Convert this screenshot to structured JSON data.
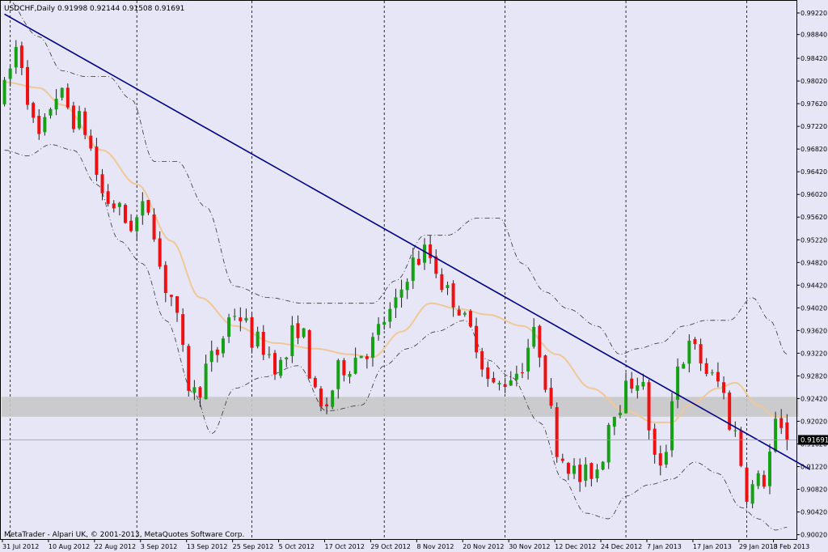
{
  "window": {
    "header": "USDCHF,Daily  0.91998 0.92144 0.91508 0.91691",
    "copyright": "MetaTrader - Alpari UK, © 2001-2013, MetaQuotes Software Corp.",
    "current_price_label": "0.91691"
  },
  "colors": {
    "background": "#e6e6f7",
    "bull": "#16a016",
    "bear": "#ee1111",
    "wick": "#222222",
    "trendline": "#000088",
    "ma": "#f0c896",
    "band": "#333333",
    "zone": "#c8c8c8",
    "grid": "#000000"
  },
  "chart_data": {
    "type": "candlestick",
    "symbol": "USDCHF",
    "timeframe": "Daily",
    "header_ohlc": {
      "open": 0.91998,
      "high": 0.92144,
      "low": 0.91508,
      "close": 0.91691
    },
    "price_axis": {
      "range": [
        0.9,
        0.9922
      ],
      "ticks": [
        "0.99220",
        "0.98840",
        "0.98420",
        "0.98020",
        "0.97620",
        "0.97220",
        "0.96820",
        "0.96420",
        "0.96020",
        "0.95620",
        "0.95220",
        "0.94820",
        "0.94420",
        "0.94020",
        "0.93620",
        "0.93220",
        "0.92820",
        "0.92420",
        "0.92020",
        "0.91620",
        "0.91220",
        "0.90820",
        "0.90420",
        "0.90020"
      ]
    },
    "time_axis": {
      "bars": 138,
      "labels": [
        {
          "bar": 0,
          "text": "31 Jul 2012"
        },
        {
          "bar": 8,
          "text": "10 Aug 2012"
        },
        {
          "bar": 16,
          "text": "22 Aug 2012"
        },
        {
          "bar": 24,
          "text": "3 Sep 2012"
        },
        {
          "bar": 32,
          "text": "13 Sep 2012"
        },
        {
          "bar": 40,
          "text": "25 Sep 2012"
        },
        {
          "bar": 48,
          "text": "5 Oct 2012"
        },
        {
          "bar": 56,
          "text": "17 Oct 2012"
        },
        {
          "bar": 64,
          "text": "29 Oct 2012"
        },
        {
          "bar": 72,
          "text": "8 Nov 2012"
        },
        {
          "bar": 80,
          "text": "20 Nov 2012"
        },
        {
          "bar": 88,
          "text": "30 Nov 2012"
        },
        {
          "bar": 96,
          "text": "12 Dec 2012"
        },
        {
          "bar": 104,
          "text": "24 Dec 2012"
        },
        {
          "bar": 112,
          "text": "7 Jan 2013"
        },
        {
          "bar": 120,
          "text": "17 Jan 2013"
        },
        {
          "bar": 128,
          "text": "29 Jan 2013"
        },
        {
          "bar": 134,
          "text": "8 Feb 2013"
        }
      ],
      "period_separators": [
        1,
        23,
        43,
        66,
        87,
        108,
        129
      ]
    },
    "close_path_keypoints": [
      [
        0,
        0.9785
      ],
      [
        2,
        0.986
      ],
      [
        6,
        0.97
      ],
      [
        9,
        0.978
      ],
      [
        13,
        0.973
      ],
      [
        18,
        0.959
      ],
      [
        22,
        0.955
      ],
      [
        25,
        0.958
      ],
      [
        28,
        0.944
      ],
      [
        33,
        0.925
      ],
      [
        36,
        0.931
      ],
      [
        40,
        0.9395
      ],
      [
        44,
        0.934
      ],
      [
        48,
        0.93
      ],
      [
        51,
        0.937
      ],
      [
        55,
        0.922
      ],
      [
        59,
        0.93
      ],
      [
        63,
        0.933
      ],
      [
        67,
        0.939
      ],
      [
        71,
        0.948
      ],
      [
        73,
        0.95
      ],
      [
        78,
        0.942
      ],
      [
        81,
        0.936
      ],
      [
        85,
        0.926
      ],
      [
        89,
        0.929
      ],
      [
        92,
        0.935
      ],
      [
        97,
        0.914
      ],
      [
        100,
        0.91
      ],
      [
        103,
        0.912
      ],
      [
        106,
        0.923
      ],
      [
        110,
        0.928
      ],
      [
        114,
        0.911
      ],
      [
        117,
        0.93
      ],
      [
        119,
        0.933
      ],
      [
        124,
        0.927
      ],
      [
        127,
        0.918
      ],
      [
        129,
        0.908
      ],
      [
        132,
        0.91
      ],
      [
        134,
        0.919
      ],
      [
        136,
        0.9169
      ]
    ],
    "moving_average_keypoints": [
      [
        0,
        0.98
      ],
      [
        6,
        0.979
      ],
      [
        10,
        0.976
      ],
      [
        17,
        0.968
      ],
      [
        23,
        0.962
      ],
      [
        29,
        0.952
      ],
      [
        34,
        0.942
      ],
      [
        40,
        0.937
      ],
      [
        47,
        0.934
      ],
      [
        54,
        0.933
      ],
      [
        60,
        0.932
      ],
      [
        64,
        0.9315
      ],
      [
        69,
        0.936
      ],
      [
        74,
        0.941
      ],
      [
        79,
        0.94
      ],
      [
        84,
        0.939
      ],
      [
        90,
        0.937
      ],
      [
        96,
        0.932
      ],
      [
        102,
        0.926
      ],
      [
        108,
        0.922
      ],
      [
        113,
        0.92
      ],
      [
        116,
        0.92
      ],
      [
        119,
        0.923
      ],
      [
        124,
        0.926
      ],
      [
        127,
        0.927
      ],
      [
        131,
        0.923
      ],
      [
        134,
        0.921
      ],
      [
        136,
        0.921
      ]
    ],
    "envelope_upper_keypoints": [
      [
        0,
        0.995
      ],
      [
        6,
        0.988
      ],
      [
        10,
        0.982
      ],
      [
        14,
        0.981
      ],
      [
        18,
        0.981
      ],
      [
        22,
        0.977
      ],
      [
        26,
        0.966
      ],
      [
        30,
        0.966
      ],
      [
        35,
        0.958
      ],
      [
        40,
        0.944
      ],
      [
        46,
        0.942
      ],
      [
        52,
        0.941
      ],
      [
        58,
        0.941
      ],
      [
        64,
        0.941
      ],
      [
        68,
        0.945
      ],
      [
        73,
        0.953
      ],
      [
        77,
        0.953
      ],
      [
        82,
        0.956
      ],
      [
        86,
        0.956
      ],
      [
        90,
        0.948
      ],
      [
        94,
        0.943
      ],
      [
        98,
        0.94
      ],
      [
        103,
        0.937
      ],
      [
        107,
        0.932
      ],
      [
        110,
        0.933
      ],
      [
        114,
        0.934
      ],
      [
        118,
        0.937
      ],
      [
        122,
        0.938
      ],
      [
        126,
        0.938
      ],
      [
        130,
        0.942
      ],
      [
        133,
        0.938
      ],
      [
        136,
        0.932
      ]
    ],
    "envelope_lower_keypoints": [
      [
        0,
        0.968
      ],
      [
        4,
        0.967
      ],
      [
        8,
        0.969
      ],
      [
        12,
        0.968
      ],
      [
        16,
        0.962
      ],
      [
        20,
        0.952
      ],
      [
        24,
        0.948
      ],
      [
        28,
        0.938
      ],
      [
        33,
        0.925
      ],
      [
        36,
        0.918
      ],
      [
        40,
        0.926
      ],
      [
        45,
        0.928
      ],
      [
        51,
        0.93
      ],
      [
        56,
        0.922
      ],
      [
        62,
        0.923
      ],
      [
        66,
        0.93
      ],
      [
        70,
        0.933
      ],
      [
        75,
        0.936
      ],
      [
        80,
        0.938
      ],
      [
        84,
        0.931
      ],
      [
        88,
        0.928
      ],
      [
        93,
        0.92
      ],
      [
        97,
        0.91
      ],
      [
        101,
        0.904
      ],
      [
        105,
        0.903
      ],
      [
        108,
        0.907
      ],
      [
        112,
        0.909
      ],
      [
        116,
        0.91
      ],
      [
        120,
        0.913
      ],
      [
        124,
        0.911
      ],
      [
        128,
        0.905
      ],
      [
        131,
        0.903
      ],
      [
        134,
        0.901
      ],
      [
        136,
        0.9015
      ]
    ],
    "trendline": {
      "start": [
        0,
        0.992
      ],
      "end": [
        140,
        0.9117
      ]
    },
    "support_zone": {
      "from_bar": 0,
      "to_bar": 138,
      "price_low": 0.921,
      "price_high": 0.9245
    },
    "current_price": 0.91691
  }
}
